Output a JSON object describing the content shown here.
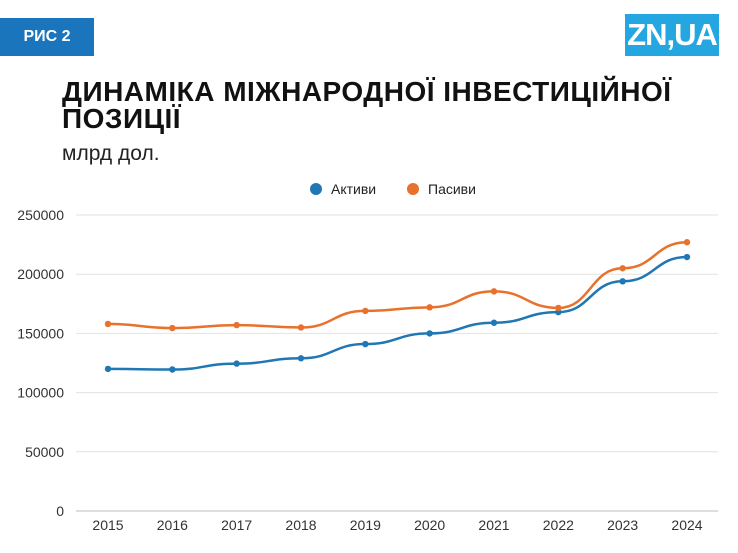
{
  "header": {
    "badge": "РИС 2",
    "logo": "ZN,UA",
    "title": "ДИНАМІКА МІЖНАРОДНОЇ ІНВЕСТИЦІЙНОЇ ПОЗИЦІЇ",
    "subtitle": "млрд дол."
  },
  "colors": {
    "badge": "#1b75bc",
    "logo": "#24a7e0",
    "assets": "#1f77b4",
    "liabilities": "#e8712c"
  },
  "chart_data": {
    "type": "line",
    "title": "ДИНАМІКА МІЖНАРОДНОЇ ІНВЕСТИЦІЙНОЇ ПОЗИЦІЇ",
    "ylabel": "млрд дол.",
    "xlabel": "",
    "categories": [
      "2015",
      "2016",
      "2017",
      "2018",
      "2019",
      "2020",
      "2021",
      "2022",
      "2023",
      "2024"
    ],
    "ylim": [
      0,
      250000
    ],
    "yticks": [
      0,
      50000,
      100000,
      150000,
      200000,
      250000
    ],
    "legend_position": "top-center",
    "grid": true,
    "series": [
      {
        "name": "Активи",
        "color": "#1f77b4",
        "values": [
          120000,
          119500,
          124500,
          129000,
          141000,
          150000,
          159000,
          168000,
          194000,
          214500
        ]
      },
      {
        "name": "Пасиви",
        "color": "#e8712c",
        "values": [
          158000,
          154500,
          157000,
          155000,
          169000,
          172000,
          185500,
          171500,
          205000,
          227000
        ]
      }
    ]
  }
}
